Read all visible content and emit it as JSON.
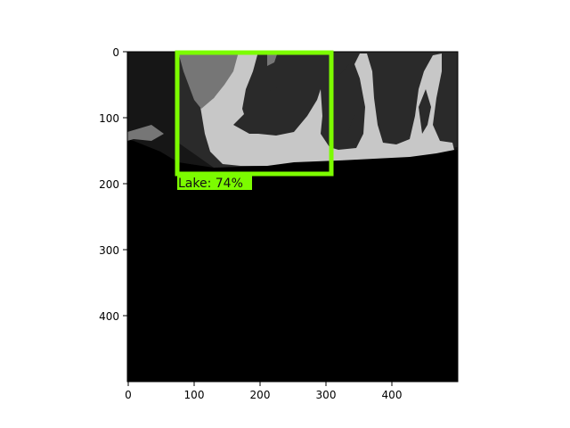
{
  "image": {
    "description_colors": {
      "sky": "#161616",
      "land": "#2a2a2a",
      "water_light": "#c7c7c7",
      "water_mid": "#767676",
      "sea": "#000000"
    }
  },
  "axes": {
    "x_ticks": [
      "0",
      "100",
      "200",
      "300",
      "400"
    ],
    "y_ticks": [
      "0",
      "100",
      "200",
      "300",
      "400"
    ],
    "xlim": [
      0,
      500
    ],
    "ylim": [
      500,
      0
    ]
  },
  "detection": {
    "label": "Lake: 74%",
    "color": "#7cfc00",
    "box_data_units": {
      "x0": 75,
      "y0": 0,
      "x1": 310,
      "y1": 185
    }
  }
}
